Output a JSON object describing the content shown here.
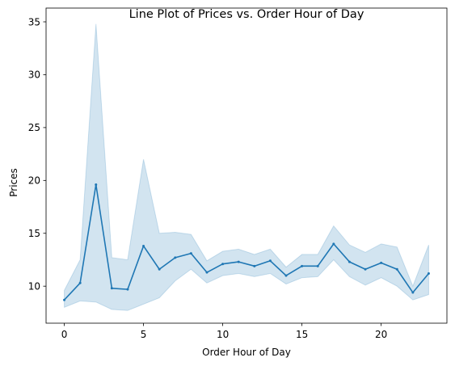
{
  "chart_data": {
    "type": "line",
    "title": "Line Plot of Prices vs. Order Hour of Day",
    "xlabel": "Order Hour of Day",
    "ylabel": "Prices",
    "xlim": [
      -1.15,
      24.15
    ],
    "ylim": [
      6.5,
      36.3
    ],
    "xticks": [
      0,
      5,
      10,
      15,
      20
    ],
    "yticks": [
      10,
      15,
      20,
      25,
      30,
      35
    ],
    "grid": false,
    "x": [
      0,
      1,
      2,
      3,
      4,
      5,
      6,
      7,
      8,
      9,
      10,
      11,
      12,
      13,
      14,
      15,
      16,
      17,
      18,
      19,
      20,
      21,
      22,
      23
    ],
    "series": [
      {
        "values": [
          8.7,
          10.3,
          19.6,
          9.8,
          9.7,
          13.8,
          11.6,
          12.7,
          13.1,
          11.3,
          12.1,
          12.3,
          11.9,
          12.4,
          11.0,
          11.9,
          11.9,
          14.0,
          12.3,
          11.6,
          12.2,
          11.6,
          9.4,
          11.2
        ],
        "ci_upper": [
          9.6,
          12.5,
          34.8,
          12.7,
          12.5,
          22.0,
          15.0,
          15.1,
          14.9,
          12.4,
          13.3,
          13.5,
          13.0,
          13.5,
          11.8,
          13.0,
          13.0,
          15.7,
          13.9,
          13.2,
          14.0,
          13.7,
          10.0,
          13.9
        ],
        "ci_lower": [
          8.0,
          8.6,
          8.5,
          7.8,
          7.7,
          8.3,
          8.9,
          10.5,
          11.6,
          10.3,
          11.0,
          11.2,
          10.9,
          11.2,
          10.2,
          10.8,
          10.9,
          12.5,
          10.9,
          10.1,
          10.8,
          10.0,
          8.7,
          9.2
        ]
      }
    ],
    "colors": {
      "line": "#1f77b4",
      "band": "#1f77b4"
    }
  }
}
